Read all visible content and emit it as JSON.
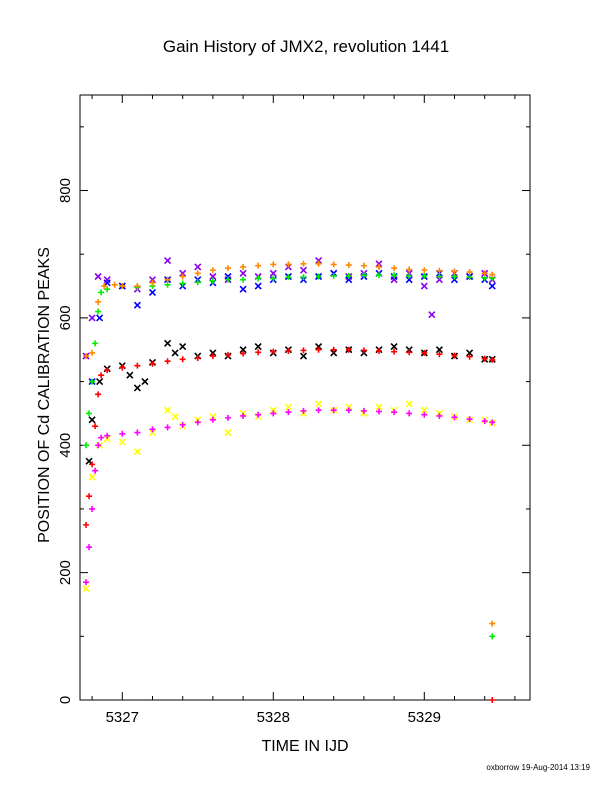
{
  "chart_data": {
    "type": "scatter",
    "title": "Gain History of JMX2, revolution 1441",
    "xlabel": "TIME IN IJD",
    "ylabel": "POSITION OF Cd CALIBRATION PEAKS",
    "xlim": [
      5326.72,
      5329.7
    ],
    "ylim": [
      0,
      950
    ],
    "x_ticks": [
      5327,
      5328,
      5329
    ],
    "y_ticks": [
      0,
      200,
      400,
      600,
      800
    ],
    "grid": false,
    "legend": "none",
    "series": [
      {
        "color": "#8800ee",
        "marker": "x",
        "x": [
          5326.76,
          5326.8,
          5326.84,
          5326.9,
          5327.0,
          5327.1,
          5327.2,
          5327.3,
          5327.4,
          5327.5,
          5327.6,
          5327.7,
          5327.8,
          5327.9,
          5328.0,
          5328.1,
          5328.2,
          5328.3,
          5328.4,
          5328.5,
          5328.6,
          5328.7,
          5328.8,
          5328.9,
          5329.0,
          5329.05,
          5329.1,
          5329.2,
          5329.3,
          5329.4,
          5329.45
        ],
        "y": [
          540,
          600,
          665,
          660,
          650,
          645,
          660,
          690,
          670,
          680,
          665,
          660,
          670,
          665,
          670,
          680,
          675,
          690,
          670,
          665,
          670,
          685,
          660,
          670,
          650,
          605,
          660,
          670,
          665,
          670,
          660
        ]
      },
      {
        "color": "#0000ff",
        "marker": "x",
        "x": [
          5326.8,
          5326.85,
          5326.9,
          5327.0,
          5327.1,
          5327.2,
          5327.3,
          5327.4,
          5327.5,
          5327.6,
          5327.7,
          5327.8,
          5327.9,
          5328.0,
          5328.1,
          5328.2,
          5328.3,
          5328.4,
          5328.5,
          5328.6,
          5328.7,
          5328.8,
          5328.9,
          5329.0,
          5329.1,
          5329.2,
          5329.3,
          5329.4,
          5329.45
        ],
        "y": [
          500,
          600,
          655,
          650,
          620,
          640,
          660,
          650,
          660,
          655,
          665,
          645,
          650,
          660,
          665,
          660,
          665,
          670,
          660,
          665,
          670,
          665,
          660,
          665,
          670,
          660,
          665,
          660,
          650
        ]
      },
      {
        "color": "#00ee00",
        "marker": "+",
        "x": [
          5326.76,
          5326.78,
          5326.8,
          5326.82,
          5326.84,
          5326.86,
          5326.9,
          5327.0,
          5327.1,
          5327.2,
          5327.3,
          5327.4,
          5327.5,
          5327.6,
          5327.7,
          5327.8,
          5327.9,
          5328.0,
          5328.1,
          5328.2,
          5328.3,
          5328.4,
          5328.5,
          5328.6,
          5328.7,
          5328.8,
          5328.9,
          5329.0,
          5329.1,
          5329.2,
          5329.3,
          5329.4,
          5329.45,
          5329.45
        ],
        "y": [
          400,
          450,
          500,
          560,
          610,
          640,
          645,
          650,
          648,
          650,
          652,
          654,
          656,
          658,
          660,
          660,
          662,
          662,
          664,
          664,
          665,
          666,
          666,
          667,
          667,
          667,
          666,
          666,
          665,
          665,
          664,
          663,
          663,
          100
        ]
      },
      {
        "color": "#ff8800",
        "marker": "+",
        "x": [
          5326.76,
          5326.8,
          5326.84,
          5326.88,
          5326.95,
          5327.0,
          5327.1,
          5327.2,
          5327.3,
          5327.4,
          5327.5,
          5327.6,
          5327.7,
          5327.8,
          5327.9,
          5328.0,
          5328.1,
          5328.2,
          5328.3,
          5328.4,
          5328.5,
          5328.6,
          5328.7,
          5328.8,
          5328.9,
          5329.0,
          5329.1,
          5329.2,
          5329.3,
          5329.4,
          5329.45,
          5329.45
        ],
        "y": [
          540,
          545,
          625,
          650,
          652,
          650,
          650,
          655,
          660,
          665,
          670,
          675,
          678,
          680,
          682,
          684,
          684,
          685,
          685,
          684,
          683,
          682,
          680,
          678,
          676,
          675,
          674,
          673,
          672,
          670,
          668,
          120
        ]
      },
      {
        "color": "#000000",
        "marker": "x",
        "x": [
          5326.78,
          5326.8,
          5326.85,
          5326.9,
          5327.0,
          5327.05,
          5327.1,
          5327.15,
          5327.2,
          5327.3,
          5327.35,
          5327.4,
          5327.5,
          5327.6,
          5327.7,
          5327.8,
          5327.9,
          5328.0,
          5328.1,
          5328.2,
          5328.3,
          5328.4,
          5328.5,
          5328.6,
          5328.7,
          5328.8,
          5328.9,
          5329.0,
          5329.1,
          5329.2,
          5329.3,
          5329.4,
          5329.45
        ],
        "y": [
          375,
          440,
          500,
          520,
          525,
          510,
          490,
          500,
          530,
          560,
          545,
          555,
          540,
          545,
          540,
          550,
          555,
          545,
          550,
          540,
          555,
          545,
          550,
          545,
          550,
          555,
          550,
          545,
          550,
          540,
          545,
          535,
          535
        ]
      },
      {
        "color": "#ff0000",
        "marker": "+",
        "x": [
          5326.76,
          5326.78,
          5326.8,
          5326.82,
          5326.84,
          5326.86,
          5326.9,
          5327.0,
          5327.1,
          5327.2,
          5327.3,
          5327.4,
          5327.5,
          5327.6,
          5327.7,
          5327.8,
          5327.9,
          5328.0,
          5328.1,
          5328.2,
          5328.3,
          5328.4,
          5328.5,
          5328.6,
          5328.7,
          5328.8,
          5328.9,
          5329.0,
          5329.1,
          5329.2,
          5329.3,
          5329.4,
          5329.45,
          5329.45
        ],
        "y": [
          275,
          320,
          370,
          430,
          480,
          510,
          518,
          522,
          525,
          528,
          532,
          535,
          537,
          540,
          542,
          544,
          546,
          547,
          548,
          549,
          550,
          550,
          550,
          549,
          548,
          547,
          546,
          545,
          543,
          541,
          539,
          536,
          534,
          0
        ]
      },
      {
        "color": "#ffff00",
        "marker": "x",
        "x": [
          5326.76,
          5326.8,
          5326.85,
          5326.9,
          5327.0,
          5327.1,
          5327.2,
          5327.3,
          5327.35,
          5327.4,
          5327.5,
          5327.6,
          5327.7,
          5327.8,
          5327.9,
          5328.0,
          5328.1,
          5328.2,
          5328.3,
          5328.4,
          5328.5,
          5328.6,
          5328.7,
          5328.8,
          5328.9,
          5329.0,
          5329.1,
          5329.2,
          5329.3,
          5329.4,
          5329.45
        ],
        "y": [
          175,
          350,
          400,
          410,
          405,
          390,
          420,
          455,
          445,
          430,
          440,
          445,
          420,
          450,
          445,
          455,
          460,
          450,
          465,
          455,
          460,
          450,
          460,
          455,
          465,
          455,
          450,
          445,
          440,
          440,
          435
        ]
      },
      {
        "color": "#ff00ff",
        "marker": "+",
        "x": [
          5326.76,
          5326.78,
          5326.8,
          5326.82,
          5326.84,
          5326.86,
          5326.9,
          5327.0,
          5327.1,
          5327.2,
          5327.3,
          5327.4,
          5327.5,
          5327.6,
          5327.7,
          5327.8,
          5327.9,
          5328.0,
          5328.1,
          5328.2,
          5328.3,
          5328.4,
          5328.5,
          5328.6,
          5328.7,
          5328.8,
          5328.9,
          5329.0,
          5329.1,
          5329.2,
          5329.3,
          5329.4,
          5329.45
        ],
        "y": [
          185,
          240,
          300,
          360,
          400,
          412,
          415,
          418,
          420,
          425,
          428,
          432,
          436,
          440,
          443,
          446,
          448,
          450,
          452,
          454,
          455,
          455,
          455,
          454,
          453,
          452,
          450,
          448,
          446,
          444,
          441,
          438,
          436
        ]
      }
    ]
  },
  "footer": {
    "credit": "oxborrow 19-Aug-2014 13:19"
  }
}
